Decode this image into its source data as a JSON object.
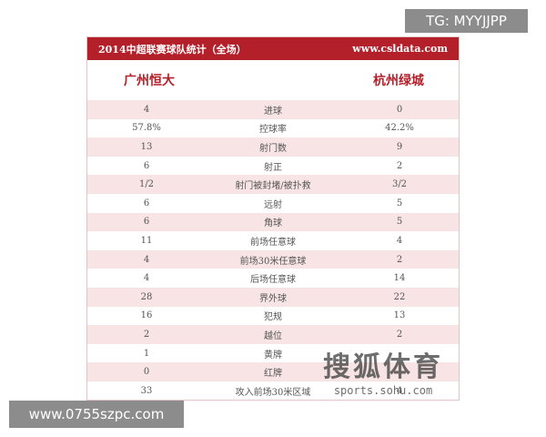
{
  "header": {
    "title": "2014中超联赛球队统计（全场）",
    "site": "www.csldata.com"
  },
  "teams": [
    "广州恒大",
    "杭州绿城"
  ],
  "table": {
    "rows": [
      [
        "4",
        "进球",
        "0"
      ],
      [
        "57.8%",
        "控球率",
        "42.2%"
      ],
      [
        "13",
        "射门数",
        "9"
      ],
      [
        "6",
        "射正",
        "2"
      ],
      [
        "1/2",
        "射门被封堵/被扑救",
        "3/2"
      ],
      [
        "6",
        "远射",
        "5"
      ],
      [
        "6",
        "角球",
        "5"
      ],
      [
        "11",
        "前场任意球",
        "4"
      ],
      [
        "4",
        "前场30米任意球",
        "2"
      ],
      [
        "4",
        "后场任意球",
        "14"
      ],
      [
        "28",
        "界外球",
        "22"
      ],
      [
        "16",
        "犯规",
        "13"
      ],
      [
        "2",
        "越位",
        "2"
      ],
      [
        "1",
        "黄牌",
        null
      ],
      [
        "0",
        "红牌",
        null
      ],
      [
        "33",
        "攻入前场30米区域",
        "4"
      ]
    ]
  },
  "watermarks": {
    "top": "TG: MYYJJPP",
    "bottom": "www.0755szpc.com",
    "sohu": "搜狐体育",
    "sohu_site": "sports.sohu.com"
  }
}
